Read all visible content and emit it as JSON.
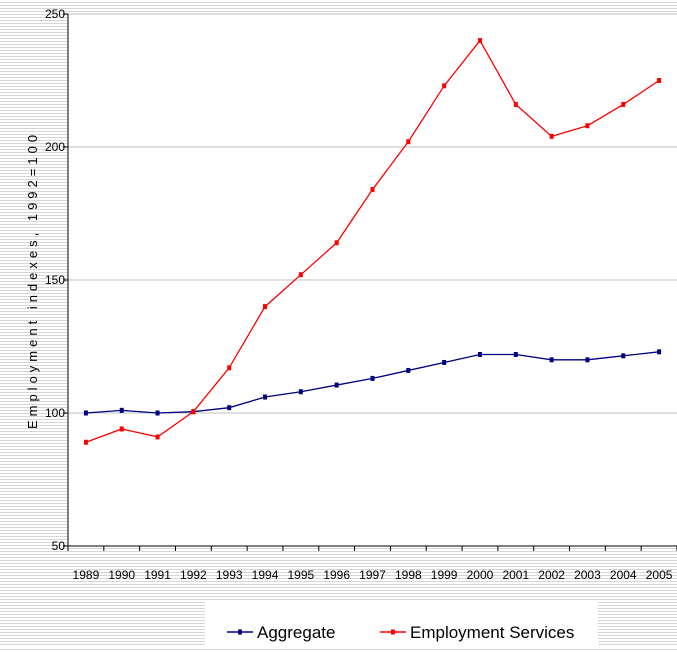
{
  "chart_data": {
    "type": "line",
    "title": "",
    "xlabel": "",
    "ylabel": "Employment indexes, 1992=100",
    "ylim": [
      50,
      250
    ],
    "yticks": [
      50,
      100,
      150,
      200,
      250
    ],
    "x": [
      "1989",
      "1990",
      "1991",
      "1992",
      "1993",
      "1994",
      "1995",
      "1996",
      "1997",
      "1998",
      "1999",
      "2000",
      "2001",
      "2002",
      "2003",
      "2004",
      "2005"
    ],
    "grid": "horizontal",
    "legend": "bottom",
    "series": [
      {
        "name": "Aggregate",
        "color": "#000080",
        "values": [
          100,
          101,
          100,
          100.5,
          102,
          106,
          108,
          110.5,
          113,
          116,
          119,
          122,
          122,
          120,
          120,
          121.5,
          123
        ]
      },
      {
        "name": "Employment Services",
        "color": "#ff0000",
        "values": [
          89,
          94,
          91,
          100.5,
          117,
          140,
          152,
          164,
          184,
          202,
          223,
          240,
          216,
          204,
          208,
          216,
          225
        ]
      }
    ]
  }
}
